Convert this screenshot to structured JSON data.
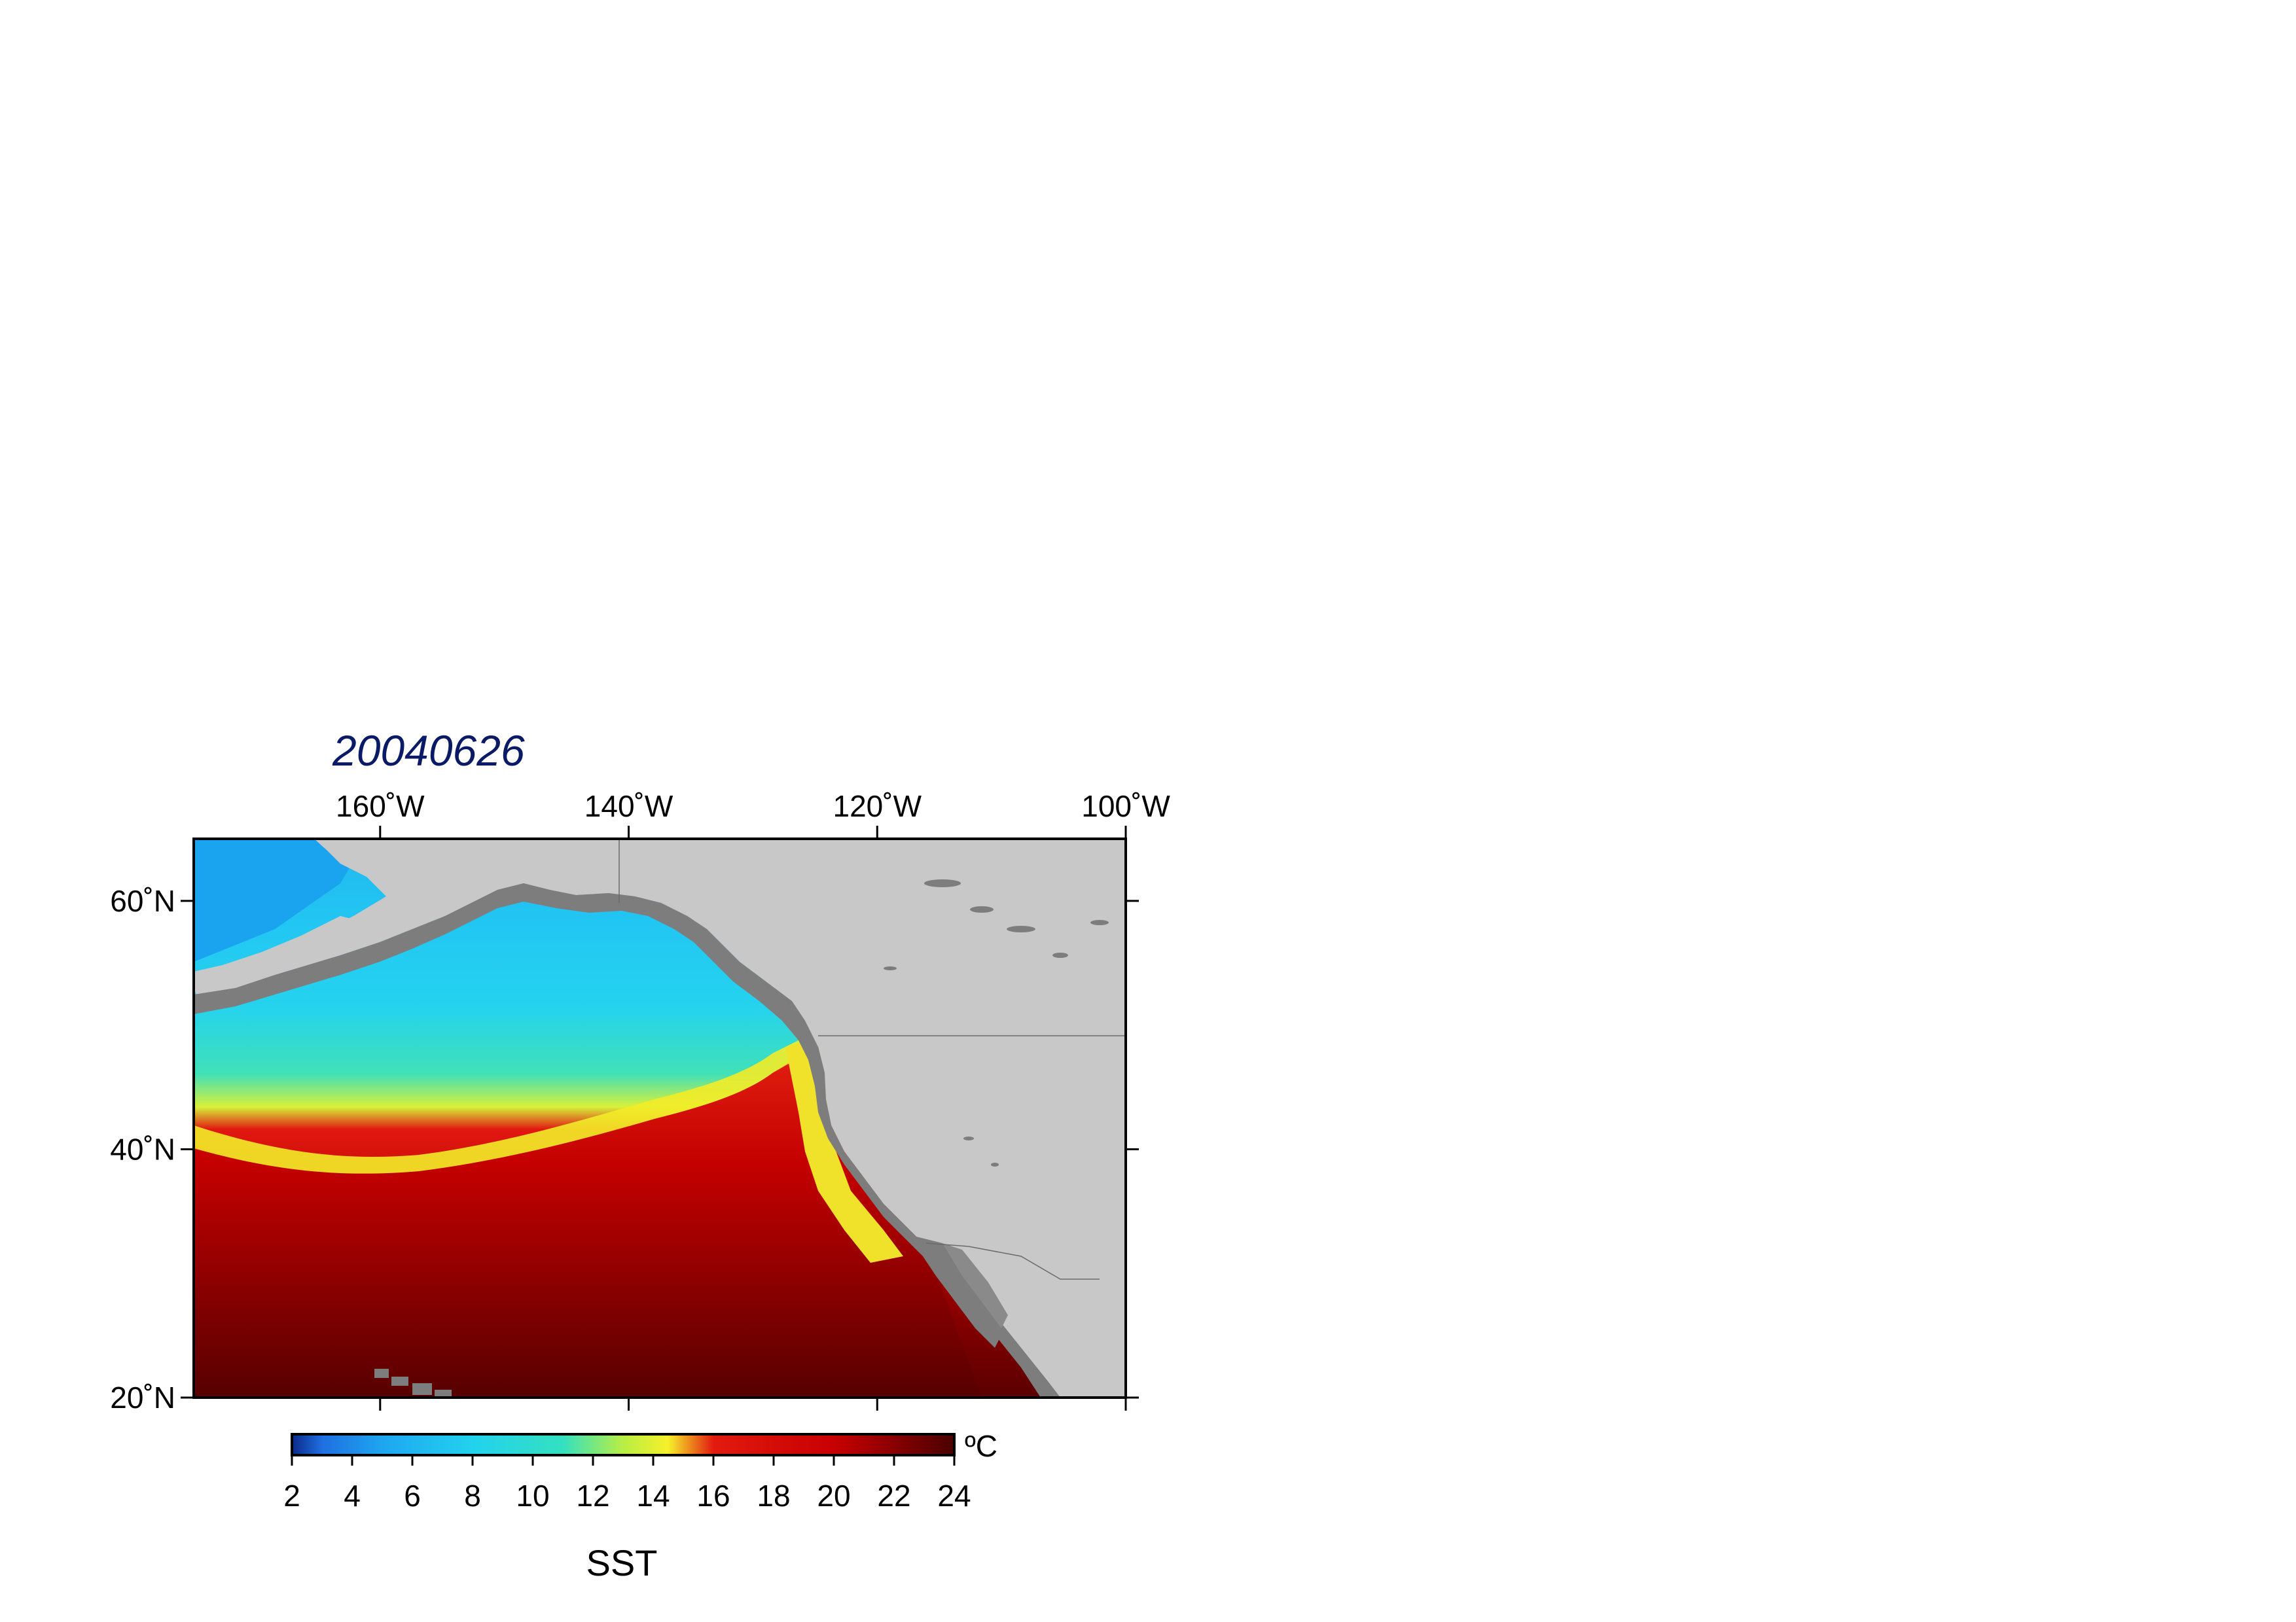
{
  "map": {
    "title": "20040626",
    "extent": {
      "lon_min": -175,
      "lon_max": -100,
      "lat_min": 20,
      "lat_max": 65
    },
    "lon_ticks": [
      {
        "lon": -160,
        "label": "160˚W"
      },
      {
        "lon": -140,
        "label": "140˚W"
      },
      {
        "lon": -120,
        "label": "120˚W"
      },
      {
        "lon": -100,
        "label": "100˚W"
      }
    ],
    "lat_ticks": [
      {
        "lat": 60,
        "label": "60˚N"
      },
      {
        "lat": 40,
        "label": "40˚N"
      },
      {
        "lat": 20,
        "label": "20˚N"
      }
    ],
    "land_color": "#c8c8c8",
    "shelf_color": "#7d7d7d"
  },
  "colorbar": {
    "label": "SST",
    "unit": "ºC",
    "range": [
      2,
      24
    ],
    "ticks": [
      "2",
      "4",
      "6",
      "8",
      "10",
      "12",
      "14",
      "16",
      "18",
      "20",
      "22",
      "24"
    ],
    "stops": [
      {
        "value": 2,
        "color": "#0a2a8c"
      },
      {
        "value": 3,
        "color": "#1f6fe0"
      },
      {
        "value": 5,
        "color": "#1ea6f0"
      },
      {
        "value": 8,
        "color": "#22d2ee"
      },
      {
        "value": 11,
        "color": "#34e0c0"
      },
      {
        "value": 13,
        "color": "#b8ee44"
      },
      {
        "value": 14.5,
        "color": "#f6f02a"
      },
      {
        "value": 16,
        "color": "#e21a10"
      },
      {
        "value": 20,
        "color": "#c80000"
      },
      {
        "value": 24,
        "color": "#4a0000"
      }
    ]
  }
}
